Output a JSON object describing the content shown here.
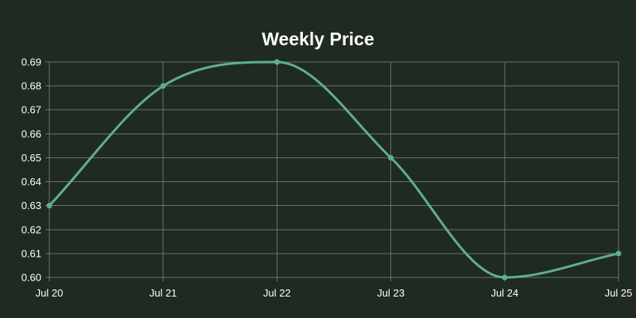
{
  "chart_data": {
    "type": "line",
    "title": "Weekly Price",
    "xlabel": "",
    "ylabel": "",
    "categories": [
      "Jul 20",
      "Jul 21",
      "Jul 22",
      "Jul 23",
      "Jul 24",
      "Jul 25"
    ],
    "series": [
      {
        "values": [
          0.63,
          0.68,
          0.69,
          0.65,
          0.6,
          0.61
        ]
      }
    ],
    "ylim": [
      0.6,
      0.69
    ],
    "yticks": [
      0.6,
      0.61,
      0.62,
      0.63,
      0.64,
      0.65,
      0.66,
      0.67,
      0.68,
      0.69
    ],
    "grid": true,
    "legend": "none",
    "colors": {
      "background": "#1f2a22",
      "line": "#5fb088",
      "grid": "#6b716c",
      "text": "#ffffff"
    }
  }
}
